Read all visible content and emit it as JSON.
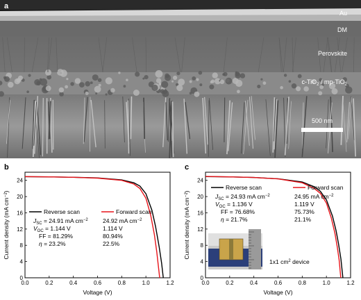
{
  "panel_a": {
    "letter": "a",
    "layers": {
      "au": "Au",
      "dm": "DM",
      "perovskite": "Perovskite",
      "tio2_parts": [
        "c-TiO",
        "2",
        " / mp-TiO",
        "2"
      ]
    },
    "scale_bar_label": "500 nm"
  },
  "chart_data": [
    {
      "type": "line",
      "panel": "b",
      "xlabel": "Voltage (V)",
      "ylabel": "Current density (mA cm⁻²)",
      "xlim": [
        0.0,
        1.2
      ],
      "ylim": [
        0,
        26
      ],
      "xticks": [
        "0.0",
        "0.2",
        "0.4",
        "0.6",
        "0.8",
        "1.0",
        "1.2"
      ],
      "yticks": [
        "0",
        "4",
        "8",
        "12",
        "16",
        "20",
        "24"
      ],
      "legend_position": "middle-left",
      "series": [
        {
          "name": "Reverse scan",
          "color": "#000000",
          "jsc": 24.91,
          "voc": 1.144,
          "x": [
            0.0,
            0.2,
            0.4,
            0.6,
            0.8,
            0.9,
            0.95,
            1.0,
            1.05,
            1.08,
            1.11,
            1.13,
            1.144
          ],
          "y": [
            24.91,
            24.85,
            24.75,
            24.6,
            24.1,
            23.4,
            22.6,
            20.7,
            16.6,
            12.6,
            7.6,
            3.6,
            0
          ]
        },
        {
          "name": "Forward scan",
          "color": "#e8141a",
          "jsc": 24.92,
          "voc": 1.114,
          "x": [
            0.0,
            0.2,
            0.4,
            0.6,
            0.8,
            0.9,
            0.95,
            1.0,
            1.04,
            1.07,
            1.09,
            1.114
          ],
          "y": [
            24.92,
            24.85,
            24.75,
            24.55,
            24.0,
            23.1,
            22.0,
            19.6,
            15.4,
            10.6,
            6.4,
            0
          ]
        }
      ],
      "params_table": {
        "rows": [
          {
            "symbol": "J",
            "sub": "SC",
            "rev": " = 24.91 mA cm",
            "rev_sup": "−2",
            "fwd": "24.92 mA cm",
            "fwd_sup": "−2"
          },
          {
            "symbol": "V",
            "sub": "OC",
            "rev": " = 1.144 V",
            "rev_sup": "",
            "fwd": "1.114 V",
            "fwd_sup": ""
          },
          {
            "symbol": "FF",
            "sub": "",
            "rev": " = 81.29%",
            "rev_sup": "",
            "fwd": "80.94%",
            "fwd_sup": ""
          },
          {
            "symbol": "η",
            "sub": "",
            "rev": " = 23.2%",
            "rev_sup": "",
            "fwd": "22.5%",
            "fwd_sup": ""
          }
        ]
      }
    },
    {
      "type": "line",
      "panel": "c",
      "xlabel": "Voltage (V)",
      "ylabel": "Current density (mA cm⁻²)",
      "xlim": [
        0.0,
        1.2
      ],
      "ylim": [
        0,
        26
      ],
      "xticks": [
        "0.0",
        "0.2",
        "0.4",
        "0.6",
        "0.8",
        "1.0",
        "1.2"
      ],
      "yticks": [
        "0",
        "4",
        "8",
        "12",
        "16",
        "20",
        "24"
      ],
      "legend_position": "top-right",
      "series": [
        {
          "name": "Reverse scan",
          "color": "#000000",
          "jsc": 24.93,
          "voc": 1.136,
          "x": [
            0.0,
            0.2,
            0.4,
            0.6,
            0.8,
            0.9,
            0.95,
            1.0,
            1.05,
            1.08,
            1.1,
            1.12,
            1.136
          ],
          "y": [
            24.93,
            24.85,
            24.7,
            24.4,
            23.6,
            22.4,
            21.3,
            19.2,
            15.2,
            11.6,
            8.4,
            4.6,
            0
          ]
        },
        {
          "name": "Forward scan",
          "color": "#e8141a",
          "jsc": 24.95,
          "voc": 1.119,
          "x": [
            0.0,
            0.2,
            0.4,
            0.6,
            0.8,
            0.9,
            0.95,
            1.0,
            1.04,
            1.07,
            1.09,
            1.105,
            1.119
          ],
          "y": [
            24.95,
            24.85,
            24.7,
            24.35,
            23.4,
            22.0,
            20.8,
            18.4,
            14.8,
            11.0,
            7.6,
            4.4,
            0
          ]
        }
      ],
      "params_table": {
        "rows": [
          {
            "symbol": "J",
            "sub": "SC",
            "rev": " = 24.93 mA cm",
            "rev_sup": "−2",
            "fwd": "24.95 mA cm",
            "fwd_sup": "−2"
          },
          {
            "symbol": "V",
            "sub": "OC",
            "rev": " = 1.136 V",
            "rev_sup": "",
            "fwd": "1.119 V",
            "fwd_sup": ""
          },
          {
            "symbol": "FF",
            "sub": "",
            "rev": " = 76.68%",
            "rev_sup": "",
            "fwd": "75.73%",
            "fwd_sup": ""
          },
          {
            "symbol": "η",
            "sub": "",
            "rev": " = 21.7%",
            "rev_sup": "",
            "fwd": "21.1%",
            "fwd_sup": ""
          }
        ]
      },
      "inset_caption": "1x1 cm",
      "inset_caption_sup": "2",
      "inset_caption_tail": " device"
    }
  ]
}
